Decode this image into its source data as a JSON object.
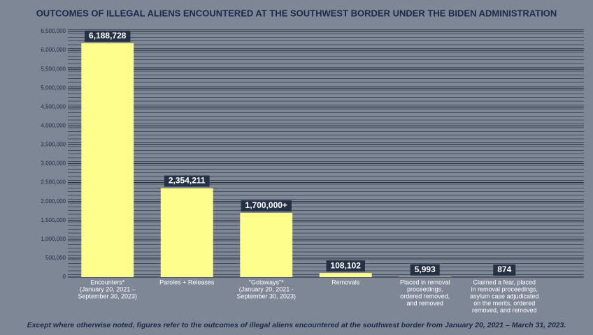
{
  "chart_data": {
    "type": "bar",
    "title": "OUTCOMES OF ILLEGAL ALIENS ENCOUNTERED AT THE SOUTHWEST BORDER UNDER THE BIDEN ADMINISTRATION",
    "categories": [
      [
        "Encounters*",
        "(January 20, 2021 –",
        "September 30, 2023)"
      ],
      [
        "Paroles + Releases"
      ],
      [
        "\"Gotaways\"*",
        "(January 20, 2021 -",
        "September 30, 2023)"
      ],
      [
        "Removals"
      ],
      [
        "Placed in removal",
        "proceedings,",
        "ordered removed,",
        "and removed"
      ],
      [
        "Claimed a fear, placed",
        "in removal proceedings,",
        "asylum case adjudicated",
        "on the merits, ordered",
        "removed, and removed"
      ]
    ],
    "values": [
      6188728,
      2354211,
      1700000,
      108102,
      5993,
      874
    ],
    "value_labels": [
      "6,188,728",
      "2,354,211",
      "1,700,000+",
      "108,102",
      "5,993",
      "874"
    ],
    "color": "#fdfd8c",
    "ylim": [
      0,
      6500000
    ],
    "yticks": [
      0,
      {
        "value": 500000,
        "label": "500,000"
      },
      {
        "value": 1000000,
        "label": "1,000,000"
      },
      {
        "value": 1500000,
        "label": "1,500,000"
      },
      {
        "value": 2000000,
        "label": "2,000,000"
      },
      {
        "value": 2500000,
        "label": "2,500,000"
      },
      {
        "value": 3000000,
        "label": "3,000,000"
      },
      {
        "value": 3500000,
        "label": "3,500,000"
      },
      {
        "value": 4000000,
        "label": "4,000,000"
      },
      {
        "value": 4500000,
        "label": "4,500,000"
      },
      {
        "value": 5000000,
        "label": "5,000,000"
      },
      {
        "value": 5500000,
        "label": "5,500,000"
      },
      {
        "value": 6000000,
        "label": "6,000,000"
      },
      {
        "value": 6500000,
        "label": "6,500,000"
      }
    ],
    "grid": true,
    "footnote": "Except where otherwise noted, figures refer to the outcomes of illegal aliens encountered at the southwest border from January 20, 2021 – March 31, 2023."
  }
}
